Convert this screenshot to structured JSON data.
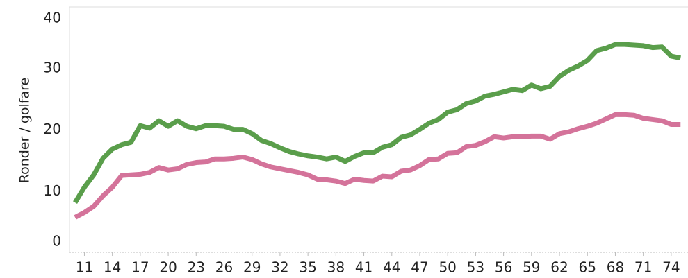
{
  "chart_data": {
    "type": "line",
    "y_label": "Ronder / golfare",
    "x": [
      10,
      11,
      12,
      13,
      14,
      15,
      16,
      17,
      18,
      19,
      20,
      21,
      22,
      23,
      24,
      25,
      26,
      27,
      28,
      29,
      30,
      31,
      32,
      33,
      34,
      35,
      36,
      37,
      38,
      39,
      40,
      41,
      42,
      43,
      44,
      45,
      46,
      47,
      48,
      49,
      50,
      51,
      52,
      53,
      54,
      55,
      56,
      57,
      58,
      59,
      60,
      61,
      62,
      63,
      64,
      65,
      66,
      67,
      68,
      69,
      70,
      71,
      72,
      73,
      74,
      75
    ],
    "series": [
      {
        "color": "#5a9e4b",
        "values": [
          8.2,
          10.7,
          12.7,
          15.4,
          16.9,
          17.6,
          18.0,
          20.7,
          20.3,
          21.5,
          20.6,
          21.5,
          20.6,
          20.2,
          20.7,
          20.7,
          20.6,
          20.1,
          20.1,
          19.4,
          18.3,
          17.8,
          17.1,
          16.5,
          16.1,
          15.8,
          15.6,
          15.3,
          15.6,
          14.9,
          15.7,
          16.3,
          16.3,
          17.2,
          17.6,
          18.8,
          19.2,
          20.1,
          21.1,
          21.7,
          22.9,
          23.3,
          24.3,
          24.7,
          25.5,
          25.8,
          26.2,
          26.6,
          26.4,
          27.3,
          26.7,
          27.1,
          28.7,
          29.7,
          30.4,
          31.3,
          32.9,
          33.3,
          33.9,
          33.9,
          33.8,
          33.7,
          33.4,
          33.5,
          32.0,
          31.7
        ]
      },
      {
        "color": "#d4739a",
        "values": [
          5.8,
          6.6,
          7.6,
          9.3,
          10.7,
          12.6,
          12.7,
          12.8,
          13.1,
          13.9,
          13.5,
          13.7,
          14.4,
          14.7,
          14.8,
          15.3,
          15.3,
          15.4,
          15.6,
          15.2,
          14.5,
          14.0,
          13.7,
          13.4,
          13.1,
          12.7,
          12.0,
          11.9,
          11.7,
          11.3,
          12.0,
          11.8,
          11.7,
          12.5,
          12.4,
          13.3,
          13.5,
          14.2,
          15.2,
          15.3,
          16.2,
          16.3,
          17.3,
          17.5,
          18.1,
          18.9,
          18.7,
          18.9,
          18.9,
          19.0,
          19.0,
          18.5,
          19.4,
          19.7,
          20.2,
          20.6,
          21.1,
          21.8,
          22.5,
          22.5,
          22.4,
          21.9,
          21.7,
          21.5,
          20.9,
          20.9
        ]
      }
    ],
    "xlim": [
      9.4,
      75.8
    ],
    "xticks": [
      11,
      14,
      17,
      20,
      23,
      26,
      29,
      32,
      35,
      38,
      41,
      44,
      47,
      50,
      53,
      56,
      59,
      62,
      65,
      68,
      71,
      74
    ],
    "ylim": [
      0,
      40
    ],
    "yticks": [
      0,
      10,
      20,
      30,
      40
    ]
  }
}
